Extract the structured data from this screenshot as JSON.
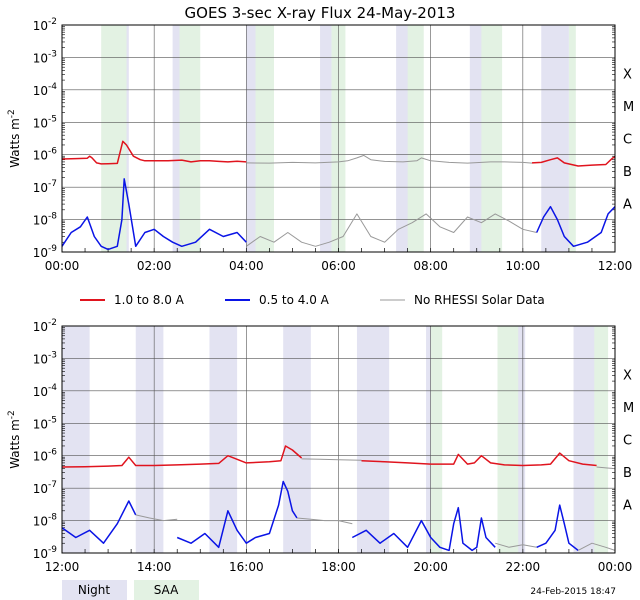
{
  "title": "GOES 3-sec X-ray Flux   24-May-2013",
  "ylabel": "Watts m",
  "ylabel_sup": "-2",
  "footer_date": "24-Feb-2015 18:47",
  "legend": [
    {
      "label": "1.0 to 8.0 A",
      "color": "#e0141e"
    },
    {
      "label": "0.5 to 4.0 A",
      "color": "#0a14e6"
    },
    {
      "label": "No RHESSI Solar Data",
      "color": "#999999"
    }
  ],
  "bottom_legend": [
    {
      "label": "Night",
      "color": "#e3e3f2"
    },
    {
      "label": "SAA",
      "color": "#e3f2e3"
    }
  ],
  "colors": {
    "night": "#e3e3f2",
    "saa": "#e3f2e3",
    "long": "#e0141e",
    "short": "#0a14e6",
    "no_data": "#999999",
    "grid": "#555555"
  },
  "chart_data": [
    {
      "type": "line",
      "title": "GOES 3-sec X-ray Flux   24-May-2013",
      "x_unit": "hours UT",
      "xlim": [
        0,
        12
      ],
      "x_tick_labels": [
        "00:00",
        "02:00",
        "04:00",
        "06:00",
        "08:00",
        "10:00",
        "12:00"
      ],
      "x_tick_values": [
        0,
        2,
        4,
        6,
        8,
        10,
        12
      ],
      "yscale": "log",
      "ylim": [
        1e-09,
        0.01
      ],
      "y_tick_labels": [
        {
          "base": "10",
          "exp": "-9"
        },
        {
          "base": "10",
          "exp": "-8"
        },
        {
          "base": "10",
          "exp": "-7"
        },
        {
          "base": "10",
          "exp": "-6"
        },
        {
          "base": "10",
          "exp": "-5"
        },
        {
          "base": "10",
          "exp": "-4"
        },
        {
          "base": "10",
          "exp": "-3"
        },
        {
          "base": "10",
          "exp": "-2"
        }
      ],
      "flare_classes": [
        {
          "label": "A",
          "flux": 1e-08
        },
        {
          "label": "B",
          "flux": 1e-07
        },
        {
          "label": "C",
          "flux": 1e-06
        },
        {
          "label": "M",
          "flux": 1e-05
        },
        {
          "label": "X",
          "flux": 0.0001
        }
      ],
      "night_intervals": [
        [
          1.2,
          1.45
        ],
        [
          2.4,
          2.65
        ],
        [
          4.0,
          4.25
        ],
        [
          5.6,
          5.85
        ],
        [
          7.25,
          7.6
        ],
        [
          8.85,
          9.3
        ],
        [
          10.4,
          11.0
        ]
      ],
      "saa_intervals": [
        [
          0.85,
          1.4
        ],
        [
          2.55,
          3.0
        ],
        [
          4.2,
          4.6
        ],
        [
          5.85,
          6.15
        ],
        [
          7.5,
          7.85
        ],
        [
          9.1,
          9.55
        ],
        [
          11.0,
          11.15
        ]
      ],
      "series": [
        {
          "name": "1.0 to 8.0 A",
          "color": "#e0141e",
          "x": [
            0,
            0.3,
            0.55,
            0.6,
            0.65,
            0.75,
            0.85,
            1.0,
            1.2,
            1.32,
            1.4,
            1.55,
            1.7,
            1.8,
            2.0,
            2.3,
            2.6,
            2.8,
            3.0,
            3.2,
            3.4,
            3.6,
            3.8,
            4.0
          ],
          "y": [
            7.4e-07,
            7.6e-07,
            7.8e-07,
            9e-07,
            8e-07,
            5.6e-07,
            5.2e-07,
            5.3e-07,
            5.4e-07,
            2.6e-06,
            2e-06,
            9e-07,
            7e-07,
            6.5e-07,
            6.5e-07,
            6.5e-07,
            6.8e-07,
            6e-07,
            6.5e-07,
            6.5e-07,
            6.2e-07,
            6e-07,
            6.3e-07,
            6e-07
          ]
        },
        {
          "name": "No RHESSI Solar Data",
          "color": "#999999",
          "x": [
            4.0,
            4.5,
            5.0,
            5.5,
            6.0,
            6.2,
            6.4,
            6.55,
            6.7,
            7.0,
            7.4,
            7.7,
            7.8,
            8.0,
            8.4,
            8.8,
            9.3,
            9.6,
            10.0,
            10.2
          ],
          "y": [
            5.6e-07,
            5.5e-07,
            5.8e-07,
            5.6e-07,
            6e-07,
            6.5e-07,
            8e-07,
            9.5e-07,
            7e-07,
            6.2e-07,
            6e-07,
            6.5e-07,
            8e-07,
            6.5e-07,
            5.8e-07,
            5.5e-07,
            6e-07,
            6e-07,
            5.8e-07,
            5.5e-07
          ]
        },
        {
          "name": "1.0 to 8.0 A",
          "color": "#e0141e",
          "x": [
            10.2,
            10.4,
            10.6,
            10.75,
            10.9,
            11.2,
            11.5,
            11.8,
            11.95,
            12.0
          ],
          "y": [
            5.6e-07,
            5.8e-07,
            7e-07,
            8e-07,
            5.6e-07,
            4.5e-07,
            4.8e-07,
            5e-07,
            8e-07,
            8.5e-07
          ]
        },
        {
          "name": "0.5 to 4.0 A",
          "color": "#0a14e6",
          "x": [
            0,
            0.2,
            0.4,
            0.55,
            0.7,
            0.85,
            1.0,
            1.2,
            1.3,
            1.35,
            1.45,
            1.6,
            1.8,
            2.0,
            2.2,
            2.4,
            2.6,
            2.9,
            3.2,
            3.5,
            3.8,
            4.0
          ],
          "y": [
            1.5e-09,
            4e-09,
            6e-09,
            1.2e-08,
            3e-09,
            1.5e-09,
            1.2e-09,
            1.5e-09,
            1e-08,
            1.8e-07,
            3e-08,
            1.5e-09,
            4e-09,
            5e-09,
            3e-09,
            2e-09,
            1.5e-09,
            2e-09,
            5e-09,
            3e-09,
            4e-09,
            2e-09
          ]
        },
        {
          "name": "No RHESSI Solar Data",
          "color": "#999999",
          "x": [
            4.0,
            4.3,
            4.6,
            4.9,
            5.2,
            5.5,
            5.8,
            6.1,
            6.4,
            6.7,
            7.0,
            7.3,
            7.6,
            7.9,
            8.2,
            8.5,
            8.8,
            9.1,
            9.4,
            9.7,
            10.0,
            10.3
          ],
          "y": [
            1.5e-09,
            3e-09,
            2e-09,
            4e-09,
            2e-09,
            1.5e-09,
            2e-09,
            3e-09,
            1.5e-08,
            3e-09,
            2e-09,
            5e-09,
            8e-09,
            1.5e-08,
            6e-09,
            4e-09,
            1.2e-08,
            8e-09,
            1.5e-08,
            9e-09,
            5e-09,
            4e-09
          ]
        },
        {
          "name": "0.5 to 4.0 A",
          "color": "#0a14e6",
          "x": [
            10.3,
            10.45,
            10.6,
            10.75,
            10.9,
            11.1,
            11.4,
            11.7,
            11.85,
            12.0
          ],
          "y": [
            4e-09,
            1.2e-08,
            2.5e-08,
            1e-08,
            3e-09,
            1.5e-09,
            2e-09,
            4e-09,
            1.5e-08,
            2.5e-08
          ]
        }
      ]
    },
    {
      "type": "line",
      "x_unit": "hours UT",
      "xlim": [
        12,
        24
      ],
      "x_tick_labels": [
        "12:00",
        "14:00",
        "16:00",
        "18:00",
        "20:00",
        "22:00",
        "00:00"
      ],
      "x_tick_values": [
        12,
        14,
        16,
        18,
        20,
        22,
        24
      ],
      "yscale": "log",
      "ylim": [
        1e-09,
        0.01
      ],
      "y_tick_labels": [
        {
          "base": "10",
          "exp": "-9"
        },
        {
          "base": "10",
          "exp": "-8"
        },
        {
          "base": "10",
          "exp": "-7"
        },
        {
          "base": "10",
          "exp": "-6"
        },
        {
          "base": "10",
          "exp": "-5"
        },
        {
          "base": "10",
          "exp": "-4"
        },
        {
          "base": "10",
          "exp": "-3"
        },
        {
          "base": "10",
          "exp": "-2"
        }
      ],
      "flare_classes": [
        {
          "label": "A",
          "flux": 1e-08
        },
        {
          "label": "B",
          "flux": 1e-07
        },
        {
          "label": "C",
          "flux": 1e-06
        },
        {
          "label": "M",
          "flux": 1e-05
        },
        {
          "label": "X",
          "flux": 0.0001
        }
      ],
      "night_intervals": [
        [
          12.0,
          12.6
        ],
        [
          13.6,
          14.2
        ],
        [
          15.2,
          15.8
        ],
        [
          16.8,
          17.4
        ],
        [
          18.4,
          19.1
        ],
        [
          19.9,
          20.2
        ],
        [
          21.6,
          22.05
        ],
        [
          23.1,
          23.6
        ]
      ],
      "saa_intervals": [
        [
          20.0,
          20.25
        ],
        [
          21.45,
          21.9
        ],
        [
          23.55,
          23.85
        ]
      ],
      "series": [
        {
          "name": "1.0 to 8.0 A",
          "color": "#e0141e",
          "x": [
            12.0,
            12.5,
            13.0,
            13.3,
            13.45,
            13.6,
            14.0,
            14.5,
            15.0,
            15.4,
            15.6,
            16.0,
            16.5,
            16.75,
            16.85,
            17.0,
            17.2
          ],
          "y": [
            4.5e-07,
            4.6e-07,
            4.8e-07,
            5e-07,
            9e-07,
            5e-07,
            5e-07,
            5.2e-07,
            5.5e-07,
            5.8e-07,
            1e-06,
            6e-07,
            6.5e-07,
            7e-07,
            2e-06,
            1.5e-06,
            8.5e-07
          ]
        },
        {
          "name": "No RHESSI Solar Data",
          "color": "#999999",
          "x": [
            17.2,
            17.6,
            18.0,
            18.5
          ],
          "y": [
            8e-07,
            7.8e-07,
            7.5e-07,
            7.2e-07
          ]
        },
        {
          "name": "1.0 to 8.0 A",
          "color": "#e0141e",
          "x": [
            18.5,
            19.0,
            19.5,
            20.0,
            20.3,
            20.5,
            20.6,
            20.8,
            20.95,
            21.1,
            21.3,
            21.6,
            22.0,
            22.4,
            22.6,
            22.8,
            23.0,
            23.3,
            23.6
          ],
          "y": [
            7e-07,
            6.5e-07,
            6e-07,
            5.5e-07,
            5.5e-07,
            5.5e-07,
            1.1e-06,
            5.5e-07,
            6e-07,
            1e-06,
            6e-07,
            5.2e-07,
            5e-07,
            5.2e-07,
            5.5e-07,
            1.2e-06,
            7e-07,
            5.5e-07,
            5e-07
          ]
        },
        {
          "name": "No RHESSI Solar Data",
          "color": "#999999",
          "x": [
            23.6,
            23.8,
            24.0
          ],
          "y": [
            4.5e-07,
            4.2e-07,
            4e-07
          ]
        },
        {
          "name": "0.5 to 4.0 A",
          "color": "#0a14e6",
          "x": [
            12.0,
            12.3,
            12.6,
            12.9,
            13.2,
            13.45,
            13.6
          ],
          "y": [
            6e-09,
            3e-09,
            5e-09,
            2e-09,
            8e-09,
            4e-08,
            1.5e-08
          ]
        },
        {
          "name": "No RHESSI Solar Data",
          "color": "#999999",
          "x": [
            13.6,
            13.9,
            14.2,
            14.5
          ],
          "y": [
            1.5e-08,
            1.2e-08,
            1e-08,
            1.1e-08
          ]
        },
        {
          "name": "0.5 to 4.0 A",
          "color": "#0a14e6",
          "x": [
            14.5,
            14.8,
            15.1,
            15.4,
            15.6,
            15.8,
            16.0,
            16.2,
            16.5,
            16.7,
            16.8,
            16.9,
            17.0,
            17.1
          ],
          "y": [
            3e-09,
            2e-09,
            4e-09,
            1.5e-09,
            2e-08,
            5e-09,
            2e-09,
            3e-09,
            4e-09,
            3e-08,
            1.6e-07,
            8e-08,
            2e-08,
            1.2e-08
          ]
        },
        {
          "name": "No RHESSI Solar Data",
          "color": "#999999",
          "x": [
            17.1,
            17.4,
            17.7,
            18.0,
            18.3
          ],
          "y": [
            1.2e-08,
            1.1e-08,
            1e-08,
            1e-08,
            8e-09
          ]
        },
        {
          "name": "0.5 to 4.0 A",
          "color": "#0a14e6",
          "x": [
            18.3,
            18.6,
            18.9,
            19.2,
            19.5,
            19.8,
            20.0,
            20.2,
            20.4,
            20.5,
            20.6,
            20.7,
            20.9,
            21.0,
            21.1,
            21.2,
            21.4
          ],
          "y": [
            3e-09,
            5e-09,
            2e-09,
            4e-09,
            1.5e-09,
            1e-08,
            3e-09,
            1.5e-09,
            1.2e-09,
            8e-09,
            2.5e-08,
            2e-09,
            1.2e-09,
            1.5e-09,
            1.2e-08,
            3e-09,
            1.5e-09
          ]
        },
        {
          "name": "No RHESSI Solar Data",
          "color": "#999999",
          "x": [
            21.4,
            21.7,
            22.0,
            22.3
          ],
          "y": [
            2e-09,
            1.5e-09,
            1.8e-09,
            1.5e-09
          ]
        },
        {
          "name": "0.5 to 4.0 A",
          "color": "#0a14e6",
          "x": [
            22.3,
            22.5,
            22.7,
            22.8,
            22.9,
            23.0,
            23.2
          ],
          "y": [
            1.5e-09,
            2e-09,
            5e-09,
            3e-08,
            8e-09,
            2e-09,
            1.2e-09
          ]
        },
        {
          "name": "No RHESSI Solar Data",
          "color": "#999999",
          "x": [
            23.2,
            23.5,
            23.8,
            24.0
          ],
          "y": [
            1.2e-09,
            2e-09,
            1.5e-09,
            1.2e-09
          ]
        }
      ]
    }
  ]
}
